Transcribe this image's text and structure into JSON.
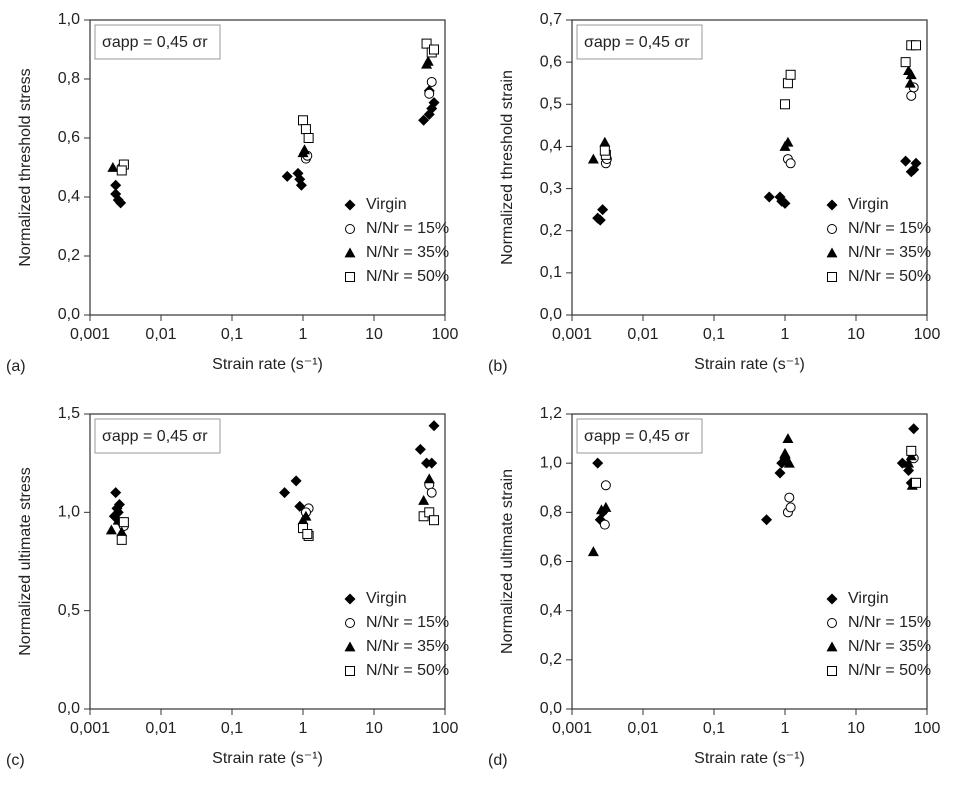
{
  "chart_data": [
    {
      "type": "scatter",
      "panel": "(a)",
      "annotation": "σapp = 0,45 σr",
      "x_label": "Strain rate (s⁻¹)",
      "y_label": "Normalized threshold stress",
      "xscale": "log",
      "legend": "lower right",
      "xlim": [
        0.001,
        100
      ],
      "xticks": [
        {
          "value": 0.001,
          "label": "0,001"
        },
        {
          "value": 0.01,
          "label": "0,01"
        },
        {
          "value": 0.1,
          "label": "0,1"
        },
        1,
        10,
        100
      ],
      "ylim": [
        0,
        1
      ],
      "yticks": [
        {
          "value": 0,
          "label": "0,0"
        },
        {
          "value": 0.2,
          "label": "0,2"
        },
        {
          "value": 0.4,
          "label": "0,4"
        },
        {
          "value": 0.6,
          "label": "0,6"
        },
        {
          "value": 0.8,
          "label": "0,8"
        },
        {
          "value": 1,
          "label": "1,0"
        }
      ],
      "series": [
        {
          "name": "Virgin",
          "color": "#000000",
          "marker": "diamond",
          "x": [
            0.0023,
            0.0023,
            0.0025,
            0.0027,
            0.6,
            0.85,
            0.9,
            0.95,
            50,
            60,
            65,
            70,
            60
          ],
          "values": [
            0.44,
            0.41,
            0.39,
            0.38,
            0.47,
            0.48,
            0.46,
            0.44,
            0.66,
            0.68,
            0.7,
            0.72,
            0.76
          ]
        },
        {
          "name": "N/Nr = 15%",
          "color": "#000000",
          "marker": "circle",
          "x": [
            0.003,
            0.0028,
            1.1,
            1.15,
            60,
            65
          ],
          "values": [
            0.51,
            0.5,
            0.53,
            0.54,
            0.75,
            0.79
          ]
        },
        {
          "name": "N/Nr = 35%",
          "color": "#000000",
          "marker": "triangle",
          "x": [
            0.0021,
            1,
            1.05,
            55,
            58
          ],
          "values": [
            0.5,
            0.55,
            0.56,
            0.85,
            0.86
          ]
        },
        {
          "name": "N/Nr = 50%",
          "color": "#000000",
          "marker": "square",
          "x": [
            0.003,
            0.0028,
            1,
            1.1,
            1.2,
            55,
            65,
            70
          ],
          "values": [
            0.51,
            0.49,
            0.66,
            0.63,
            0.6,
            0.92,
            0.89,
            0.9
          ]
        }
      ]
    },
    {
      "type": "scatter",
      "panel": "(b)",
      "annotation": "σapp = 0,45 σr",
      "x_label": "Strain rate (s⁻¹)",
      "y_label": "Normalized threshold strain",
      "xscale": "log",
      "legend": "lower right",
      "xlim": [
        0.001,
        100
      ],
      "xticks": [
        {
          "value": 0.001,
          "label": "0,001"
        },
        {
          "value": 0.01,
          "label": "0,01"
        },
        {
          "value": 0.1,
          "label": "0,1"
        },
        1,
        10,
        100
      ],
      "ylim": [
        0,
        0.7
      ],
      "yticks": [
        {
          "value": 0,
          "label": "0,0"
        },
        {
          "value": 0.1,
          "label": "0,1"
        },
        {
          "value": 0.2,
          "label": "0,2"
        },
        {
          "value": 0.3,
          "label": "0,3"
        },
        {
          "value": 0.4,
          "label": "0,4"
        },
        {
          "value": 0.5,
          "label": "0,5"
        },
        {
          "value": 0.6,
          "label": "0,6"
        },
        {
          "value": 0.7,
          "label": "0,7"
        }
      ],
      "series": [
        {
          "name": "Virgin",
          "color": "#000000",
          "marker": "diamond",
          "x": [
            0.0023,
            0.0025,
            0.0027,
            0.6,
            0.85,
            0.9,
            1,
            50,
            60,
            65,
            70
          ],
          "values": [
            0.23,
            0.225,
            0.25,
            0.28,
            0.28,
            0.27,
            0.265,
            0.365,
            0.34,
            0.345,
            0.36
          ]
        },
        {
          "name": "N/Nr = 15%",
          "color": "#000000",
          "marker": "circle",
          "x": [
            0.003,
            0.0031,
            1.1,
            1.2,
            60,
            65
          ],
          "values": [
            0.36,
            0.37,
            0.37,
            0.36,
            0.52,
            0.54
          ]
        },
        {
          "name": "N/Nr = 35%",
          "color": "#000000",
          "marker": "triangle",
          "x": [
            0.002,
            0.0029,
            1,
            1.1,
            55,
            60,
            58
          ],
          "values": [
            0.37,
            0.41,
            0.4,
            0.41,
            0.58,
            0.57,
            0.55
          ]
        },
        {
          "name": "N/Nr = 50%",
          "color": "#000000",
          "marker": "square",
          "x": [
            0.003,
            0.0029,
            1,
            1.1,
            1.2,
            50,
            60,
            70
          ],
          "values": [
            0.38,
            0.39,
            0.5,
            0.55,
            0.57,
            0.6,
            0.64,
            0.64
          ]
        }
      ]
    },
    {
      "type": "scatter",
      "panel": "(c)",
      "annotation": "σapp = 0,45 σr",
      "x_label": "Strain rate (s⁻¹)",
      "y_label": "Normalized ultimate stress",
      "xscale": "log",
      "legend": "lower right",
      "xlim": [
        0.001,
        100
      ],
      "xticks": [
        {
          "value": 0.001,
          "label": "0,001"
        },
        {
          "value": 0.01,
          "label": "0,01"
        },
        {
          "value": 0.1,
          "label": "0,1"
        },
        1,
        10,
        100
      ],
      "ylim": [
        0,
        1.5
      ],
      "yticks": [
        {
          "value": 0,
          "label": "0,0"
        },
        {
          "value": 0.5,
          "label": "0,5"
        },
        {
          "value": 1,
          "label": "1,0"
        },
        {
          "value": 1.5,
          "label": "1,5"
        }
      ],
      "series": [
        {
          "name": "Virgin",
          "color": "#000000",
          "marker": "diamond",
          "x": [
            0.0023,
            0.0024,
            0.0026,
            0.0022,
            0.0025,
            0.55,
            0.8,
            0.9,
            1.1,
            45,
            55,
            65,
            70
          ],
          "values": [
            1.1,
            1.02,
            1.04,
            0.98,
            1,
            1.1,
            1.16,
            1.03,
            1,
            1.32,
            1.25,
            1.25,
            1.44
          ]
        },
        {
          "name": "N/Nr = 15%",
          "color": "#000000",
          "marker": "circle",
          "x": [
            0.0028,
            0.003,
            1.2,
            1.1,
            60,
            65
          ],
          "values": [
            0.95,
            0.93,
            1.02,
            1,
            1.14,
            1.1
          ]
        },
        {
          "name": "N/Nr = 35%",
          "color": "#000000",
          "marker": "triangle",
          "x": [
            0.002,
            0.0025,
            0.0028,
            1,
            1.1,
            50,
            60
          ],
          "values": [
            0.91,
            0.96,
            0.9,
            0.96,
            0.98,
            1.06,
            1.17
          ]
        },
        {
          "name": "N/Nr = 50%",
          "color": "#000000",
          "marker": "square",
          "x": [
            0.0028,
            0.003,
            1,
            1.2,
            1.15,
            50,
            60,
            70
          ],
          "values": [
            0.86,
            0.95,
            0.92,
            0.88,
            0.89,
            0.98,
            1,
            0.96
          ]
        }
      ]
    },
    {
      "type": "scatter",
      "panel": "(d)",
      "annotation": "σapp = 0,45 σr",
      "x_label": "Strain rate (s⁻¹)",
      "y_label": "Normalized ultimate strain",
      "xscale": "log",
      "legend": "lower right",
      "xlim": [
        0.001,
        100
      ],
      "xticks": [
        {
          "value": 0.001,
          "label": "0,001"
        },
        {
          "value": 0.01,
          "label": "0,01"
        },
        {
          "value": 0.1,
          "label": "0,1"
        },
        1,
        10,
        100
      ],
      "ylim": [
        0,
        1.2
      ],
      "yticks": [
        {
          "value": 0,
          "label": "0,0"
        },
        {
          "value": 0.2,
          "label": "0,2"
        },
        {
          "value": 0.4,
          "label": "0,4"
        },
        {
          "value": 0.6,
          "label": "0,6"
        },
        {
          "value": 0.8,
          "label": "0,8"
        },
        {
          "value": 1,
          "label": "1,0"
        },
        {
          "value": 1.2,
          "label": "1,2"
        }
      ],
      "series": [
        {
          "name": "Virgin",
          "color": "#000000",
          "marker": "diamond",
          "x": [
            0.0023,
            0.0025,
            0.0027,
            0.55,
            0.85,
            0.9,
            1,
            45,
            55,
            65,
            60
          ],
          "values": [
            1,
            0.77,
            0.8,
            0.77,
            0.96,
            1,
            1.02,
            1,
            0.97,
            1.14,
            0.92
          ]
        },
        {
          "name": "N/Nr = 15%",
          "color": "#000000",
          "marker": "circle",
          "x": [
            0.003,
            0.0029,
            1.1,
            1.2,
            1.15,
            60,
            65
          ],
          "values": [
            0.91,
            0.75,
            0.8,
            0.82,
            0.86,
            1.05,
            1.02
          ]
        },
        {
          "name": "N/Nr = 35%",
          "color": "#000000",
          "marker": "triangle",
          "x": [
            0.002,
            0.0026,
            0.003,
            1,
            1.1,
            1.15,
            55,
            60,
            62
          ],
          "values": [
            0.64,
            0.81,
            0.82,
            1.04,
            1.1,
            1,
            1,
            1.03,
            0.91
          ]
        },
        {
          "name": "N/Nr = 50%",
          "color": "#000000",
          "marker": "square",
          "x": [
            60,
            70
          ],
          "values": [
            1.05,
            0.92
          ]
        }
      ]
    }
  ]
}
